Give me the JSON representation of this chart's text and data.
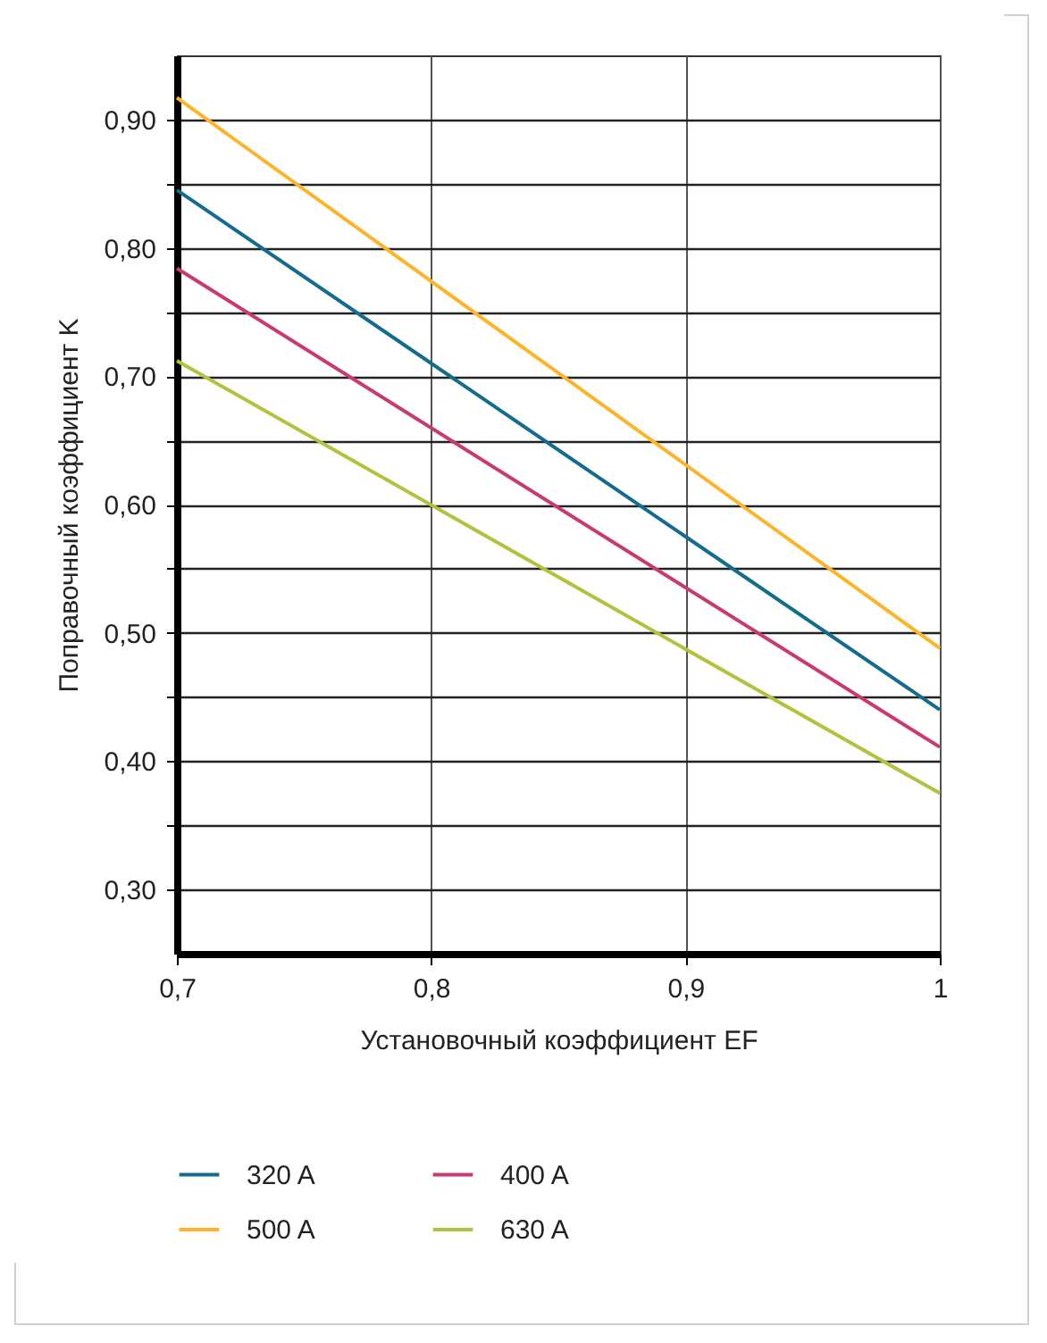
{
  "chart_data": {
    "type": "line",
    "xlabel": "Установочный коэффициент EF",
    "ylabel": "Поправочный коэффициент K",
    "x": [
      0.7,
      1.0
    ],
    "series": [
      {
        "name": "320 A",
        "color": "#136c8c",
        "values": [
          0.845,
          0.44
        ]
      },
      {
        "name": "400 A",
        "color": "#c83a74",
        "values": [
          0.784,
          0.411
        ]
      },
      {
        "name": "500 A",
        "color": "#fdb42a",
        "values": [
          0.917,
          0.488
        ]
      },
      {
        "name": "630 A",
        "color": "#b3c13f",
        "values": [
          0.712,
          0.375
        ]
      }
    ],
    "xlim": [
      0.7,
      1.0
    ],
    "xticks": [
      {
        "value": 0.7,
        "label": "0,7"
      },
      {
        "value": 0.8,
        "label": "0,8"
      },
      {
        "value": 0.9,
        "label": "0,9"
      },
      1
    ],
    "ylim": [
      0.25,
      0.95
    ],
    "yticks": [
      {
        "value": 0.3,
        "label": "0,30"
      },
      {
        "value": 0.35,
        "label": null
      },
      {
        "value": 0.4,
        "label": "0,40"
      },
      {
        "value": 0.45,
        "label": null
      },
      {
        "value": 0.5,
        "label": "0,50"
      },
      {
        "value": 0.55,
        "label": null
      },
      {
        "value": 0.6,
        "label": "0,60"
      },
      {
        "value": 0.65,
        "label": null
      },
      {
        "value": 0.7,
        "label": "0,70"
      },
      {
        "value": 0.75,
        "label": null
      },
      {
        "value": 0.8,
        "label": "0,80"
      },
      {
        "value": 0.85,
        "label": null
      },
      {
        "value": 0.9,
        "label": "0,90"
      }
    ],
    "grid": true,
    "legend": "bottom",
    "marker": "none",
    "line_style": "solid"
  }
}
